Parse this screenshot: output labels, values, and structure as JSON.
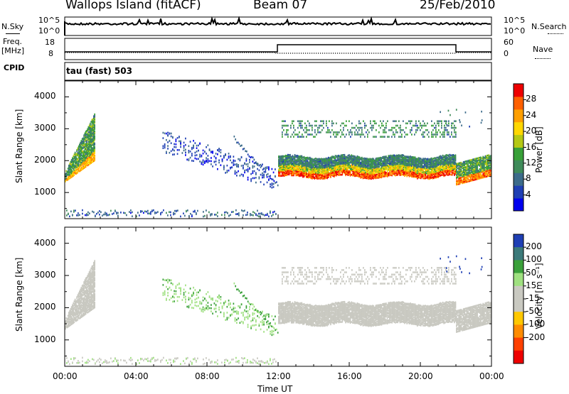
{
  "header": {
    "station": "Wallops Island (fitACF)",
    "beam": "Beam 07",
    "date": "25/Feb/2010"
  },
  "summary_panels": {
    "nsky": {
      "label": "N.Sky",
      "ticks": [
        "10^5",
        "10^0"
      ]
    },
    "nsearch": {
      "label": "N.Search",
      "ticks": [
        "10^5",
        "10^0"
      ]
    },
    "freq": {
      "label_line1": "Freq.",
      "label_line2": "[MHz]",
      "ticks": [
        "18",
        "8"
      ]
    },
    "nave": {
      "label": "Nave",
      "ticks": [
        "60",
        "0"
      ]
    },
    "cpid": {
      "label": "CPID",
      "mode": "tau (fast) 503"
    }
  },
  "colors": {
    "power_scale": [
      "#0000ee",
      "#1f3fb4",
      "#3c6b8a",
      "#3f8b5a",
      "#38a038",
      "#b4c814",
      "#ffd700",
      "#ff9f00",
      "#ff6000",
      "#ee0000"
    ],
    "velocity_scale": [
      "#1f3fb4",
      "#3c7a7a",
      "#3aa03a",
      "#9fe080",
      "#c9c9c1",
      "#c9c9c1",
      "#ffc800",
      "#ff8c00",
      "#ff4000",
      "#ee0000"
    ]
  },
  "chart_data": [
    {
      "type": "heatmap",
      "name": "power",
      "title": "",
      "xlabel": "",
      "ylabel": "Slant Range [km]",
      "xlim": [
        "00:00",
        "24:00"
      ],
      "ylim": [
        180,
        4500
      ],
      "x_tick_labels": [],
      "y_tick_labels": [
        "1000",
        "2000",
        "3000",
        "4000"
      ],
      "y_ticks": [
        1000,
        2000,
        3000,
        4000
      ],
      "colorbar": {
        "label": "Power [dB]",
        "range": [
          0,
          32
        ],
        "ticks": [
          4,
          8,
          12,
          16,
          20,
          24,
          28
        ]
      },
      "features": [
        {
          "description": "main F-region band",
          "start_hour": 12.0,
          "end_hour": 22.0,
          "range_km": [
            1450,
            2100
          ],
          "peak_db": 28
        },
        {
          "description": "early sunrise band",
          "start_hour": 0.0,
          "end_hour": 1.7,
          "range_km": [
            1300,
            3300
          ],
          "peak_db": 22
        },
        {
          "description": "weak echoes",
          "start_hour": 5.5,
          "end_hour": 11.8,
          "range_km": [
            1100,
            2900
          ],
          "peak_db": 6
        },
        {
          "description": "upper band",
          "start_hour": 12.2,
          "end_hour": 22.0,
          "range_km": [
            2700,
            3300
          ],
          "peak_db": 12
        },
        {
          "description": "evening band",
          "start_hour": 22.0,
          "end_hour": 24.0,
          "range_km": [
            1200,
            2000
          ],
          "peak_db": 26
        },
        {
          "description": "ground scatter near range",
          "start_hour": 0.0,
          "end_hour": 12.0,
          "range_km": [
            180,
            450
          ],
          "peak_db": 8
        }
      ]
    },
    {
      "type": "heatmap",
      "name": "velocity",
      "title": "",
      "xlabel": "Time UT",
      "ylabel": "Slant Range [km]",
      "xlim": [
        "00:00",
        "24:00"
      ],
      "ylim": [
        180,
        4500
      ],
      "x_tick_labels": [
        "00:00",
        "04:00",
        "08:00",
        "12:00",
        "16:00",
        "20:00",
        "00:00"
      ],
      "y_tick_labels": [
        "1000",
        "2000",
        "3000",
        "4000"
      ],
      "y_ticks": [
        1000,
        2000,
        3000,
        4000
      ],
      "colorbar": {
        "label": "Velocity [m s⁻¹]",
        "range": [
          -250,
          250
        ],
        "tick_labels": [
          "200",
          "100",
          "50",
          "15",
          "-15",
          "-50",
          "-100",
          "-200"
        ]
      },
      "features": [
        {
          "description": "ground scatter (grey)",
          "start_hour": 12.0,
          "end_hour": 22.0,
          "range_km": [
            1450,
            2100
          ],
          "velocity": 0
        },
        {
          "description": "early band",
          "start_hour": 0.0,
          "end_hour": 1.7,
          "range_km": [
            1300,
            3300
          ],
          "velocity": 0
        },
        {
          "description": "green streak",
          "start_hour": 9.5,
          "end_hour": 12.0,
          "range_km": [
            1100,
            2700
          ],
          "velocity": 40
        },
        {
          "description": "blue cluster",
          "start_hour": 21.0,
          "end_hour": 23.5,
          "range_km": [
            3000,
            3600
          ],
          "velocity": 200
        }
      ]
    }
  ],
  "summary_series": {
    "nave_level": "60 from 12:00 to 22:00, else ~20",
    "freq_level": "~12 MHz from 12:00 to 22:00, else ~10 MHz"
  }
}
